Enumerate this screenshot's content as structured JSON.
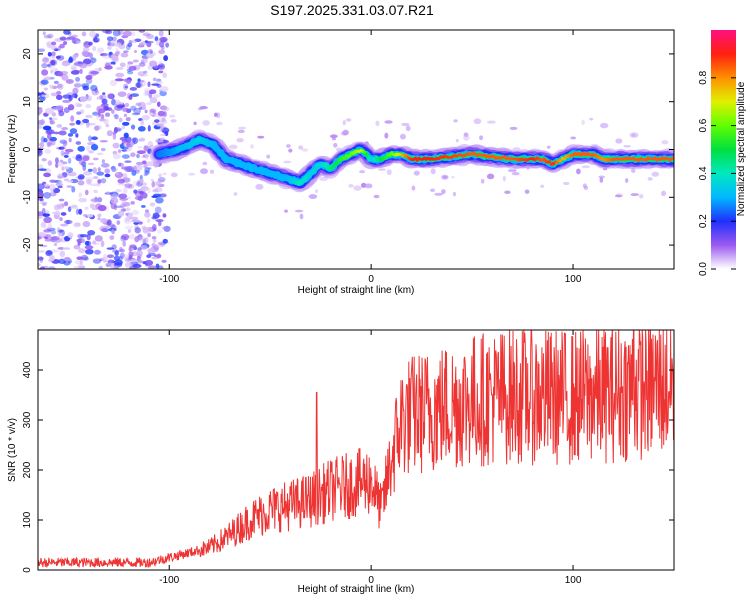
{
  "title": "S197.2025.331.03.07.R21",
  "chart_data": [
    {
      "type": "heatmap",
      "name": "spectrogram",
      "xlabel": "Height of straight line (km)",
      "ylabel": "Frequency (Hz)",
      "xlim": [
        -165,
        150
      ],
      "ylim": [
        -25,
        25
      ],
      "xticks": [
        -100,
        0,
        100
      ],
      "yticks": [
        -20,
        -10,
        0,
        10,
        20
      ],
      "colorbar": {
        "label": "Normalized spectral amplitude",
        "range": [
          0,
          1
        ],
        "ticks": [
          0.0,
          0.2,
          0.4,
          0.6,
          0.8
        ]
      },
      "noise_region_x": [
        -165,
        -105
      ],
      "trace": {
        "x": [
          -105,
          -95,
          -85,
          -78,
          -72,
          -65,
          -58,
          -50,
          -42,
          -35,
          -30,
          -25,
          -20,
          -15,
          -10,
          -5,
          0,
          5,
          10,
          15,
          20,
          30,
          50,
          70,
          80,
          85,
          90,
          95,
          100,
          110,
          115,
          120,
          130,
          140,
          148
        ],
        "frequency": [
          -1,
          0,
          2,
          1,
          -2,
          -3,
          -4,
          -5,
          -6,
          -7,
          -5,
          -3,
          -4,
          -2,
          -1,
          0,
          -2,
          -2,
          -1,
          -1,
          -2,
          -2,
          -1,
          -2,
          -2,
          -2,
          -3,
          -2,
          -1,
          -1,
          -2,
          -2,
          -2,
          -2,
          -2
        ],
        "amplitude": [
          0.25,
          0.3,
          0.35,
          0.3,
          0.3,
          0.3,
          0.3,
          0.3,
          0.3,
          0.4,
          0.35,
          0.35,
          0.45,
          0.55,
          0.6,
          0.7,
          0.35,
          0.5,
          0.6,
          0.75,
          0.9,
          0.9,
          0.85,
          0.85,
          0.9,
          0.85,
          0.9,
          0.75,
          0.85,
          0.85,
          0.8,
          0.85,
          0.85,
          0.85,
          0.85
        ]
      }
    },
    {
      "type": "line",
      "name": "snr",
      "xlabel": "Height of straight line (km)",
      "ylabel": "SNR (10 * v/v)",
      "xlim": [
        -165,
        150
      ],
      "ylim": [
        0,
        480
      ],
      "xticks": [
        -100,
        0,
        100
      ],
      "yticks": [
        0,
        100,
        200,
        300,
        400
      ],
      "color": "#ee3333",
      "trend": {
        "x": [
          -165,
          -110,
          -100,
          -90,
          -80,
          -70,
          -60,
          -50,
          -40,
          -30,
          -20,
          -10,
          0,
          5,
          10,
          15,
          20,
          30,
          50,
          70,
          100,
          120,
          150
        ],
        "y": [
          15,
          15,
          25,
          35,
          45,
          70,
          100,
          120,
          130,
          140,
          160,
          170,
          180,
          120,
          220,
          300,
          310,
          320,
          340,
          350,
          345,
          355,
          375
        ]
      },
      "peaks": [
        {
          "x": -27,
          "y": 355
        },
        {
          "x": 130,
          "y": 478
        }
      ]
    }
  ]
}
